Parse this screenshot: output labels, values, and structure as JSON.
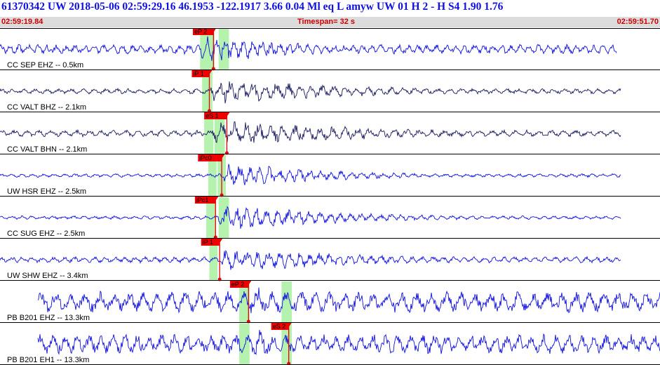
{
  "header": {
    "title": "61370342 UW 2018-05-06 02:59:29.16   46.1953 -122.1917   3.66  0.04 Ml  eq  L amyw    UW 01  H   2  -  H S4    1.90  1.76",
    "start_time": "02:59:19.84",
    "timespan": "Timespan=  32 s",
    "end_time": "02:59:51.70"
  },
  "colors": {
    "trace_blue": "#1010e0",
    "trace_navy": "#1a1a60",
    "pick_red": "#ee0000",
    "window_green": "#a8f0a0",
    "title_blue": "#1010e0",
    "time_red": "#cc0000"
  },
  "timespan_seconds": 32,
  "channels": [
    {
      "label": "CC SEP EHZ -- 0.5km",
      "color": "blue",
      "noise": 0.32,
      "arrival": 9.6,
      "peak": 1.0,
      "decay": 5.5,
      "start": 0.0,
      "end": 29.9,
      "period": 0.45,
      "seed": 1,
      "windows": [
        [
          9.7,
          10.4
        ],
        [
          10.6,
          11.1
        ]
      ],
      "picks": [
        {
          "label": "eP 2",
          "time": 10.35,
          "tag_at": 9.35
        }
      ]
    },
    {
      "label": "CC VALT BHZ -- 2.1km",
      "color": "navy",
      "noise": 0.18,
      "arrival": 10.15,
      "peak": 0.95,
      "decay": 7.0,
      "start": 0.0,
      "end": 30.1,
      "period": 0.55,
      "seed": 2,
      "windows": [
        [
          9.8,
          10.3
        ]
      ],
      "picks": [
        {
          "label": "iP 1",
          "time": 10.15,
          "tag_at": 9.3
        }
      ]
    },
    {
      "label": "CC VALT BHN -- 2.1km",
      "color": "navy",
      "noise": 0.22,
      "arrival": 10.2,
      "peak": 1.0,
      "decay": 8.0,
      "start": 0.0,
      "end": 30.1,
      "period": 0.6,
      "seed": 3,
      "windows": [
        [
          9.9,
          10.35
        ],
        [
          10.4,
          10.9
        ]
      ],
      "picks": [
        {
          "label": "eS 1",
          "time": 11.0,
          "tag_at": 9.9
        }
      ]
    },
    {
      "label": "UW HSR EHZ -- 2.5km",
      "color": "blue",
      "noise": 0.12,
      "arrival": 10.7,
      "peak": 1.0,
      "decay": 5.0,
      "start": 0.0,
      "end": 30.1,
      "period": 0.5,
      "seed": 4,
      "windows": [
        [
          10.1,
          10.5
        ],
        [
          10.55,
          10.95
        ]
      ],
      "picks": [
        {
          "label": "iPc0",
          "time": 10.75,
          "tag_at": 9.6
        }
      ]
    },
    {
      "label": "CC SUG EHZ -- 2.5km",
      "color": "blue",
      "noise": 0.12,
      "arrival": 10.5,
      "peak": 1.0,
      "decay": 6.0,
      "start": 0.0,
      "end": 30.1,
      "period": 0.5,
      "seed": 5,
      "windows": [
        [
          10.0,
          10.45
        ],
        [
          10.6,
          11.1
        ]
      ],
      "picks": [
        {
          "label": "iPc1",
          "time": 10.45,
          "tag_at": 9.45
        }
      ]
    },
    {
      "label": "UW SHW EHZ -- 3.4km",
      "color": "blue",
      "noise": 0.2,
      "arrival": 10.6,
      "peak": 0.95,
      "decay": 7.0,
      "start": 0.0,
      "end": 30.1,
      "period": 0.5,
      "seed": 6,
      "windows": [
        [
          10.15,
          10.55
        ]
      ],
      "picks": [
        {
          "label": "iP 1",
          "time": 10.65,
          "tag_at": 9.75
        }
      ]
    },
    {
      "label": "PB B201 EHZ -- 13.3km",
      "color": "blue",
      "noise": 0.7,
      "arrival": 11.95,
      "peak": 1.2,
      "decay": 3.0,
      "start": 1.85,
      "end": 32.0,
      "period": 0.7,
      "seed": 7,
      "windows": [
        [
          11.6,
          12.1
        ],
        [
          13.65,
          14.15
        ]
      ],
      "picks": [
        {
          "label": "eP 2",
          "time": 12.05,
          "tag_at": 11.15
        }
      ]
    },
    {
      "label": "PB B201 EH1 -- 13.3km",
      "color": "blue",
      "noise": 0.65,
      "arrival": 11.95,
      "peak": 1.2,
      "decay": 3.0,
      "start": 1.85,
      "end": 32.0,
      "period": 0.6,
      "seed": 8,
      "windows": [
        [
          11.6,
          12.1
        ],
        [
          13.65,
          14.15
        ]
      ],
      "picks": [
        {
          "label": "eS 2",
          "time": 14.0,
          "tag_at": 13.15
        }
      ]
    }
  ]
}
